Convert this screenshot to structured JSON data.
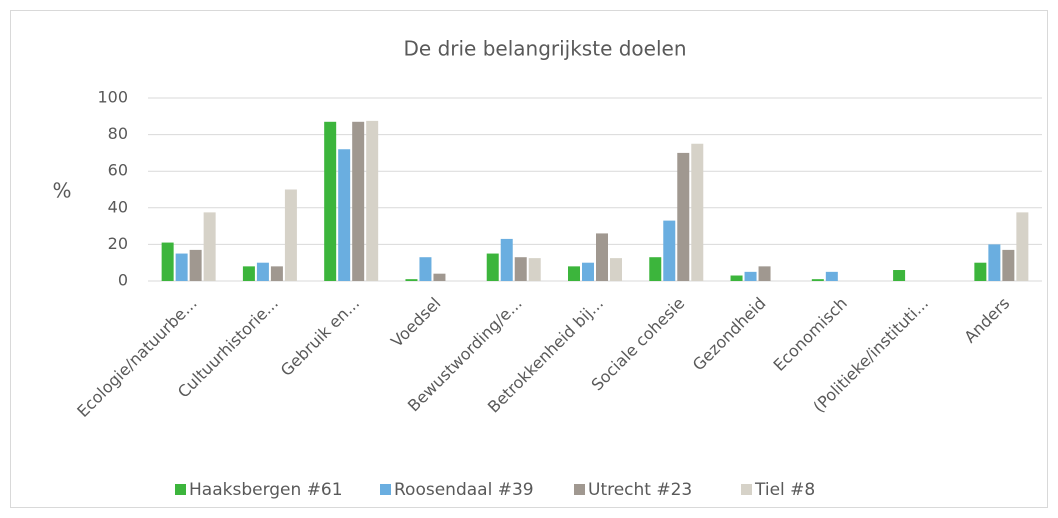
{
  "chart_data": {
    "type": "bar",
    "title": "De drie belangrijkste doelen",
    "y_label": "%",
    "categories": [
      "Ecologie/natuurbe...",
      "Cultuurhistorie...",
      "Gebruik en...",
      "Voedsel",
      "Bewustwording/e...",
      "Betrokkenheid bij...",
      "Sociale cohesie",
      "Gezondheid",
      "Economisch",
      "(Politieke/instituti...",
      "Anders"
    ],
    "series": [
      {
        "name": "Haaksbergen #61",
        "color": "#3cb53c",
        "values": [
          21,
          8,
          87,
          1,
          15,
          8,
          13,
          3,
          1,
          6,
          10
        ]
      },
      {
        "name": "Roosendaal #39",
        "color": "#6aaee0",
        "values": [
          15,
          10,
          72,
          13,
          23,
          10,
          33,
          5,
          5,
          0,
          20
        ]
      },
      {
        "name": "Utrecht #23",
        "color": "#a09890",
        "values": [
          17,
          8,
          87,
          4,
          13,
          26,
          70,
          8,
          0,
          0,
          17
        ]
      },
      {
        "name": "Tiel #8",
        "color": "#d6d2c8",
        "values": [
          37.5,
          50,
          87.5,
          0,
          12.5,
          12.5,
          75,
          0,
          0,
          0,
          37.5
        ]
      }
    ],
    "ylim": [
      0,
      100
    ],
    "yticks": [
      0,
      20,
      40,
      60,
      80,
      100
    ],
    "grid": true,
    "legend": "bottom"
  }
}
